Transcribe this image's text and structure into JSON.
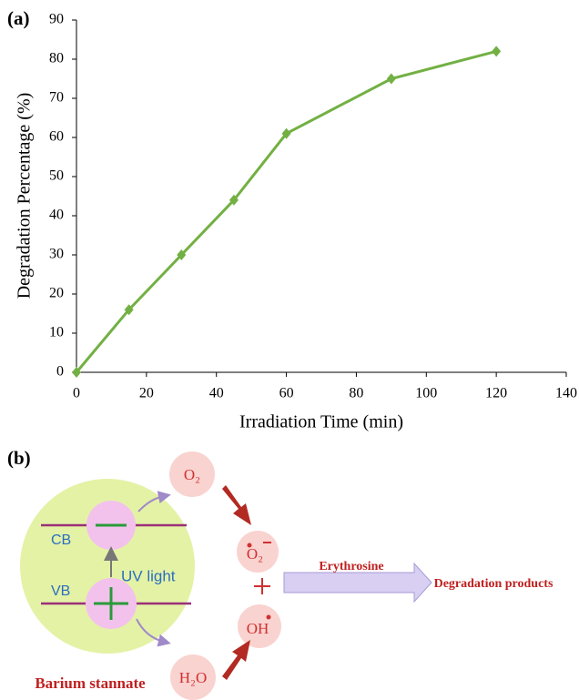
{
  "chart_data": {
    "type": "line",
    "panel_label": "(a)",
    "x_label": "Irradiation Time (min)",
    "y_label": "Degradation Percentage (%)",
    "x": [
      0,
      15,
      30,
      45,
      60,
      90,
      120
    ],
    "series": [
      {
        "color": "#72b043",
        "values": [
          0,
          16,
          30,
          44,
          61,
          75,
          82
        ]
      }
    ],
    "xlim": [
      0,
      140
    ],
    "xticks": [
      0,
      20,
      40,
      60,
      80,
      100,
      120,
      140
    ],
    "ylim": [
      0,
      90
    ],
    "yticks": [
      0,
      10,
      20,
      30,
      40,
      50,
      60,
      70,
      80,
      90
    ]
  },
  "diagram": {
    "panel_label": "(b)",
    "cb": "CB",
    "vb": "VB",
    "uv": "UV light",
    "o2": "O₂",
    "superoxide": "O₂",
    "hydroxyl": "OH",
    "water": "H₂O",
    "dye": "Erythrosine",
    "products": "Degradation products",
    "catalyst": "Barium stannate"
  }
}
